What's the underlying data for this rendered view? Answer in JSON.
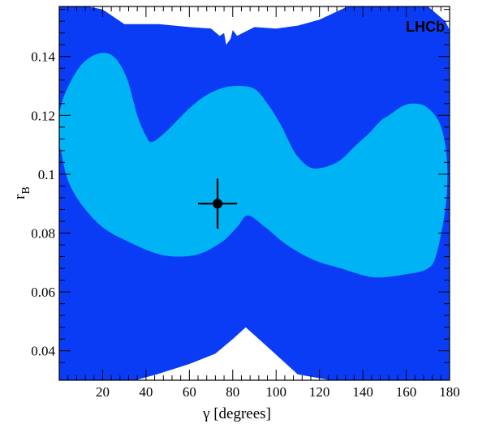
{
  "chart_data": {
    "type": "contour",
    "xlabel": "γ [degrees]",
    "ylabel": "r",
    "ylabel_subscript": "B",
    "xlim": [
      0,
      180
    ],
    "ylim": [
      0.03,
      0.157
    ],
    "xticks": [
      20,
      40,
      60,
      80,
      100,
      120,
      140,
      160,
      180
    ],
    "yticks": [
      0.04,
      0.06,
      0.08,
      0.1,
      0.12,
      0.14
    ],
    "ytick_labels": [
      "0.04",
      "0.06",
      "0.08",
      "0.1",
      "0.12",
      "0.14"
    ],
    "annotation": "LHCb",
    "colors": {
      "outer_region": "#0a3cf5",
      "inner_region": "#00b3f5",
      "background": "#ffffff",
      "marker": "#000000"
    },
    "best_fit": {
      "gamma": 73,
      "r_B": 0.09,
      "gamma_err": 9,
      "r_B_err": 0.0085
    },
    "regions": [
      {
        "name": "outer",
        "points": [
          [
            0,
            0.157
          ],
          [
            13,
            0.157
          ],
          [
            20,
            0.156
          ],
          [
            30,
            0.151
          ],
          [
            46,
            0.151
          ],
          [
            60,
            0.15
          ],
          [
            70,
            0.1495
          ],
          [
            74,
            0.147
          ],
          [
            76,
            0.148
          ],
          [
            77,
            0.144
          ],
          [
            79,
            0.146
          ],
          [
            80,
            0.149
          ],
          [
            82,
            0.147
          ],
          [
            90,
            0.15
          ],
          [
            100,
            0.1495
          ],
          [
            110,
            0.1505
          ],
          [
            120,
            0.1525
          ],
          [
            133,
            0.157
          ],
          [
            170,
            0.157
          ],
          [
            178,
            0.152
          ],
          [
            180,
            0.149
          ],
          [
            180,
            0.03
          ],
          [
            165,
            0.03
          ],
          [
            150,
            0.03
          ],
          [
            135,
            0.03
          ],
          [
            125,
            0.03
          ],
          [
            110,
            0.032
          ],
          [
            95,
            0.042
          ],
          [
            86,
            0.048
          ],
          [
            80,
            0.044
          ],
          [
            72,
            0.039
          ],
          [
            60,
            0.0355
          ],
          [
            45,
            0.032
          ],
          [
            35,
            0.03
          ],
          [
            0,
            0.03
          ]
        ]
      },
      {
        "name": "inner",
        "points": [
          [
            0,
            0.12
          ],
          [
            3,
            0.128
          ],
          [
            10,
            0.137
          ],
          [
            18,
            0.141
          ],
          [
            25,
            0.14
          ],
          [
            31,
            0.133
          ],
          [
            36,
            0.12
          ],
          [
            40,
            0.113
          ],
          [
            43,
            0.111
          ],
          [
            50,
            0.115
          ],
          [
            58,
            0.121
          ],
          [
            66,
            0.126
          ],
          [
            74,
            0.129
          ],
          [
            82,
            0.13
          ],
          [
            90,
            0.129
          ],
          [
            96,
            0.124
          ],
          [
            102,
            0.117
          ],
          [
            106,
            0.111
          ],
          [
            110,
            0.106
          ],
          [
            117,
            0.102
          ],
          [
            128,
            0.104
          ],
          [
            137,
            0.11
          ],
          [
            143,
            0.114
          ],
          [
            148,
            0.118
          ],
          [
            152,
            0.12
          ],
          [
            158,
            0.123
          ],
          [
            163,
            0.124
          ],
          [
            169,
            0.123
          ],
          [
            175,
            0.118
          ],
          [
            178,
            0.11
          ],
          [
            179,
            0.1
          ],
          [
            178,
            0.088
          ],
          [
            174,
            0.073
          ],
          [
            170,
            0.068
          ],
          [
            160,
            0.066
          ],
          [
            145,
            0.065
          ],
          [
            130,
            0.068
          ],
          [
            117,
            0.071
          ],
          [
            105,
            0.076
          ],
          [
            95,
            0.082
          ],
          [
            87,
            0.086
          ],
          [
            82,
            0.082
          ],
          [
            75,
            0.077
          ],
          [
            65,
            0.073
          ],
          [
            55,
            0.072
          ],
          [
            45,
            0.073
          ],
          [
            32,
            0.077
          ],
          [
            20,
            0.082
          ],
          [
            10,
            0.09
          ],
          [
            4,
            0.098
          ],
          [
            1,
            0.107
          ],
          [
            0,
            0.111
          ]
        ]
      }
    ]
  }
}
